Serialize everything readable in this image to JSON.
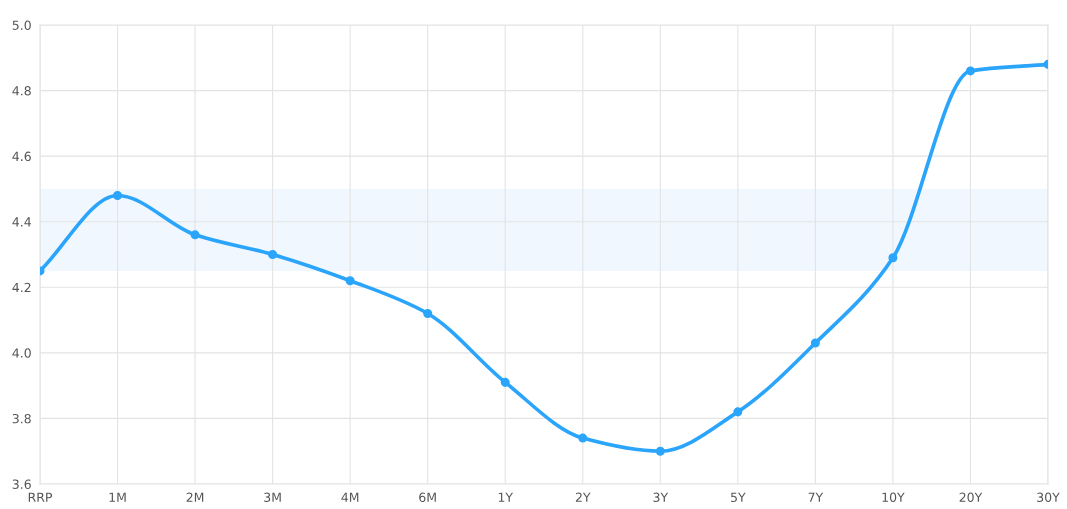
{
  "chart_data": {
    "type": "line",
    "categories": [
      "RRP",
      "1M",
      "2M",
      "3M",
      "4M",
      "6M",
      "1Y",
      "2Y",
      "3Y",
      "5Y",
      "7Y",
      "10Y",
      "20Y",
      "30Y"
    ],
    "series": [
      {
        "color": "#2aa5fb",
        "values": [
          4.25,
          4.48,
          4.36,
          4.3,
          4.22,
          4.12,
          3.91,
          3.74,
          3.7,
          3.82,
          4.03,
          4.29,
          4.86,
          4.88
        ]
      }
    ],
    "ylim": [
      3.6,
      5.0
    ],
    "yticks": [
      {
        "value": 3.6,
        "label": "3.6"
      },
      {
        "value": 3.8,
        "label": "3.8"
      },
      {
        "value": 4.0,
        "label": "4.0"
      },
      {
        "value": 4.2,
        "label": "4.2"
      },
      {
        "value": 4.4,
        "label": "4.4"
      },
      {
        "value": 4.6,
        "label": "4.6"
      },
      {
        "value": 4.8,
        "label": "4.8"
      },
      {
        "value": 5.0,
        "label": "5.0"
      }
    ],
    "bands": [
      {
        "axis": "y",
        "from": 4.25,
        "to": 4.5,
        "color": "#f1f7fe"
      }
    ],
    "grid": true,
    "marker": "circle",
    "line_style": "solid"
  }
}
